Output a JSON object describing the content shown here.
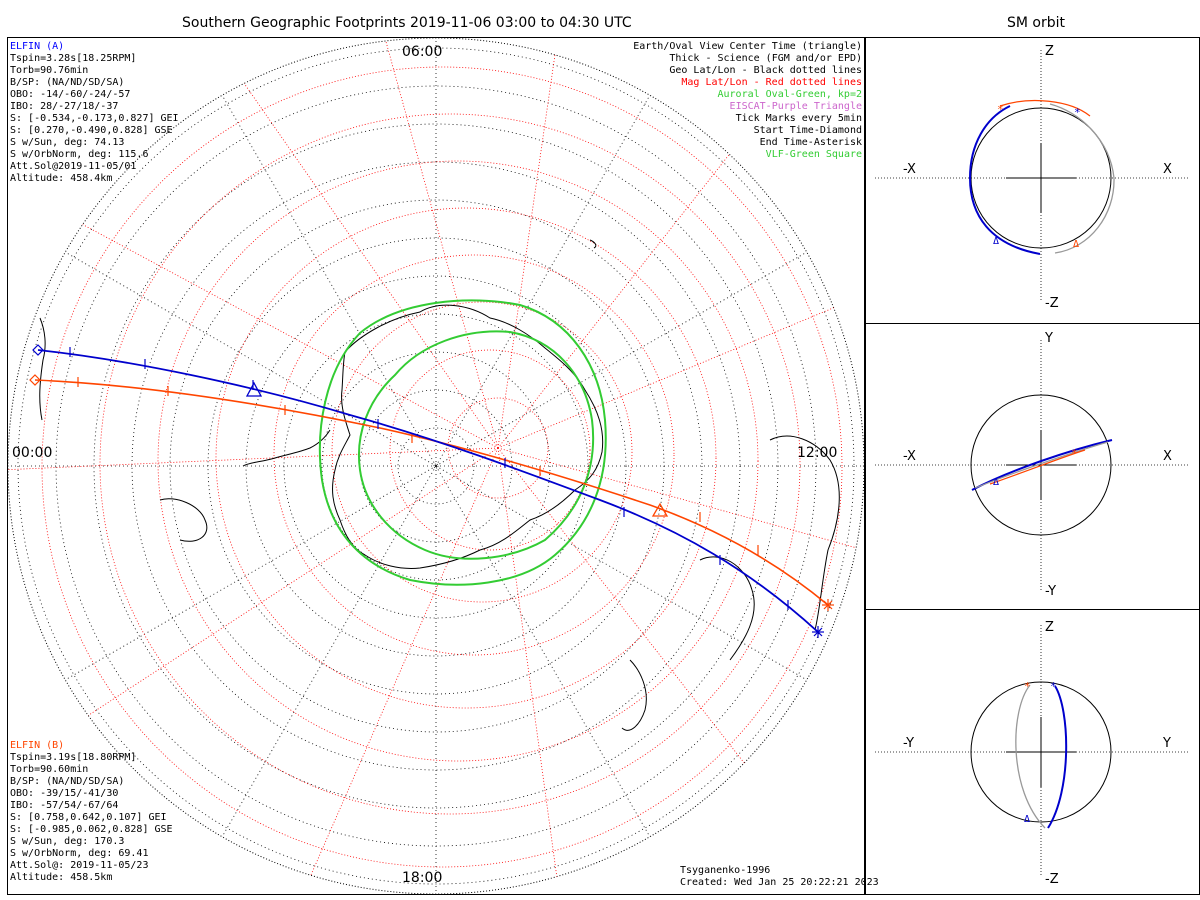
{
  "title": "Southern Geographic Footprints 2019-11-06 03:00 to 04:30 UTC",
  "orbit_title": "SM orbit",
  "clock": {
    "top": "06:00",
    "left": "00:00",
    "right": "12:00",
    "bottom": "18:00"
  },
  "elfin_a": {
    "color": "#0000ff",
    "lines": [
      "ELFIN (A)",
      "Tspin=3.28s[18.25RPM]",
      "Torb=90.76min",
      "B/SP: (NA/ND/SD/SA)",
      "OBO: -14/-60/-24/-57",
      "IBO: 28/-27/18/-37",
      "S: [-0.534,-0.173,0.827] GEI",
      "S: [0.270,-0.490,0.828] GSE",
      "S w/Sun, deg: 74.13",
      "S w/OrbNorm, deg: 115.6",
      "Att.Sol@2019-11-05/01",
      "Altitude: 458.4km"
    ]
  },
  "elfin_b": {
    "color": "#ff4500",
    "lines": [
      "ELFIN (B)",
      "Tspin=3.19s[18.80RPM]",
      "Torb=90.60min",
      "B/SP: (NA/ND/SD/SA)",
      "OBO: -39/15/-41/30",
      "IBO: -57/54/-67/64",
      "S: [0.758,0.642,0.107] GEI",
      "S: [-0.985,0.062,0.828] GSE",
      "S w/Sun, deg: 170.3",
      "S w/OrbNorm, deg: 69.41",
      "Att.Sol@: 2019-11-05/23",
      "Altitude: 458.5km"
    ]
  },
  "legend": [
    {
      "text": "Earth/Oval View Center Time (triangle)",
      "color": "#000000"
    },
    {
      "text": "Thick - Science (FGM and/or EPD)",
      "color": "#000000"
    },
    {
      "text": "Geo Lat/Lon - Black dotted lines",
      "color": "#000000"
    },
    {
      "text": "Mag Lat/Lon - Red dotted lines",
      "color": "#ff0000"
    },
    {
      "text": "Auroral Oval-Green, kp=2",
      "color": "#33cc33"
    },
    {
      "text": "EISCAT-Purple Triangle",
      "color": "#cc66cc"
    },
    {
      "text": "Tick Marks every 5min",
      "color": "#000000"
    },
    {
      "text": "Start Time-Diamond",
      "color": "#000000"
    },
    {
      "text": "End Time-Asterisk",
      "color": "#000000"
    },
    {
      "text": "VLF-Green Square",
      "color": "#33cc33"
    }
  ],
  "credit": [
    "Tsyganenko-1996",
    "Created: Wed Jan 25 20:22:21 2023"
  ],
  "orbit_panels": [
    {
      "up": "Z",
      "down": "-Z",
      "left": "-X",
      "right": "X"
    },
    {
      "up": "Y",
      "down": "-Y",
      "left": "-X",
      "right": "X"
    },
    {
      "up": "Z",
      "down": "-Z",
      "left": "-Y",
      "right": "Y"
    }
  ]
}
